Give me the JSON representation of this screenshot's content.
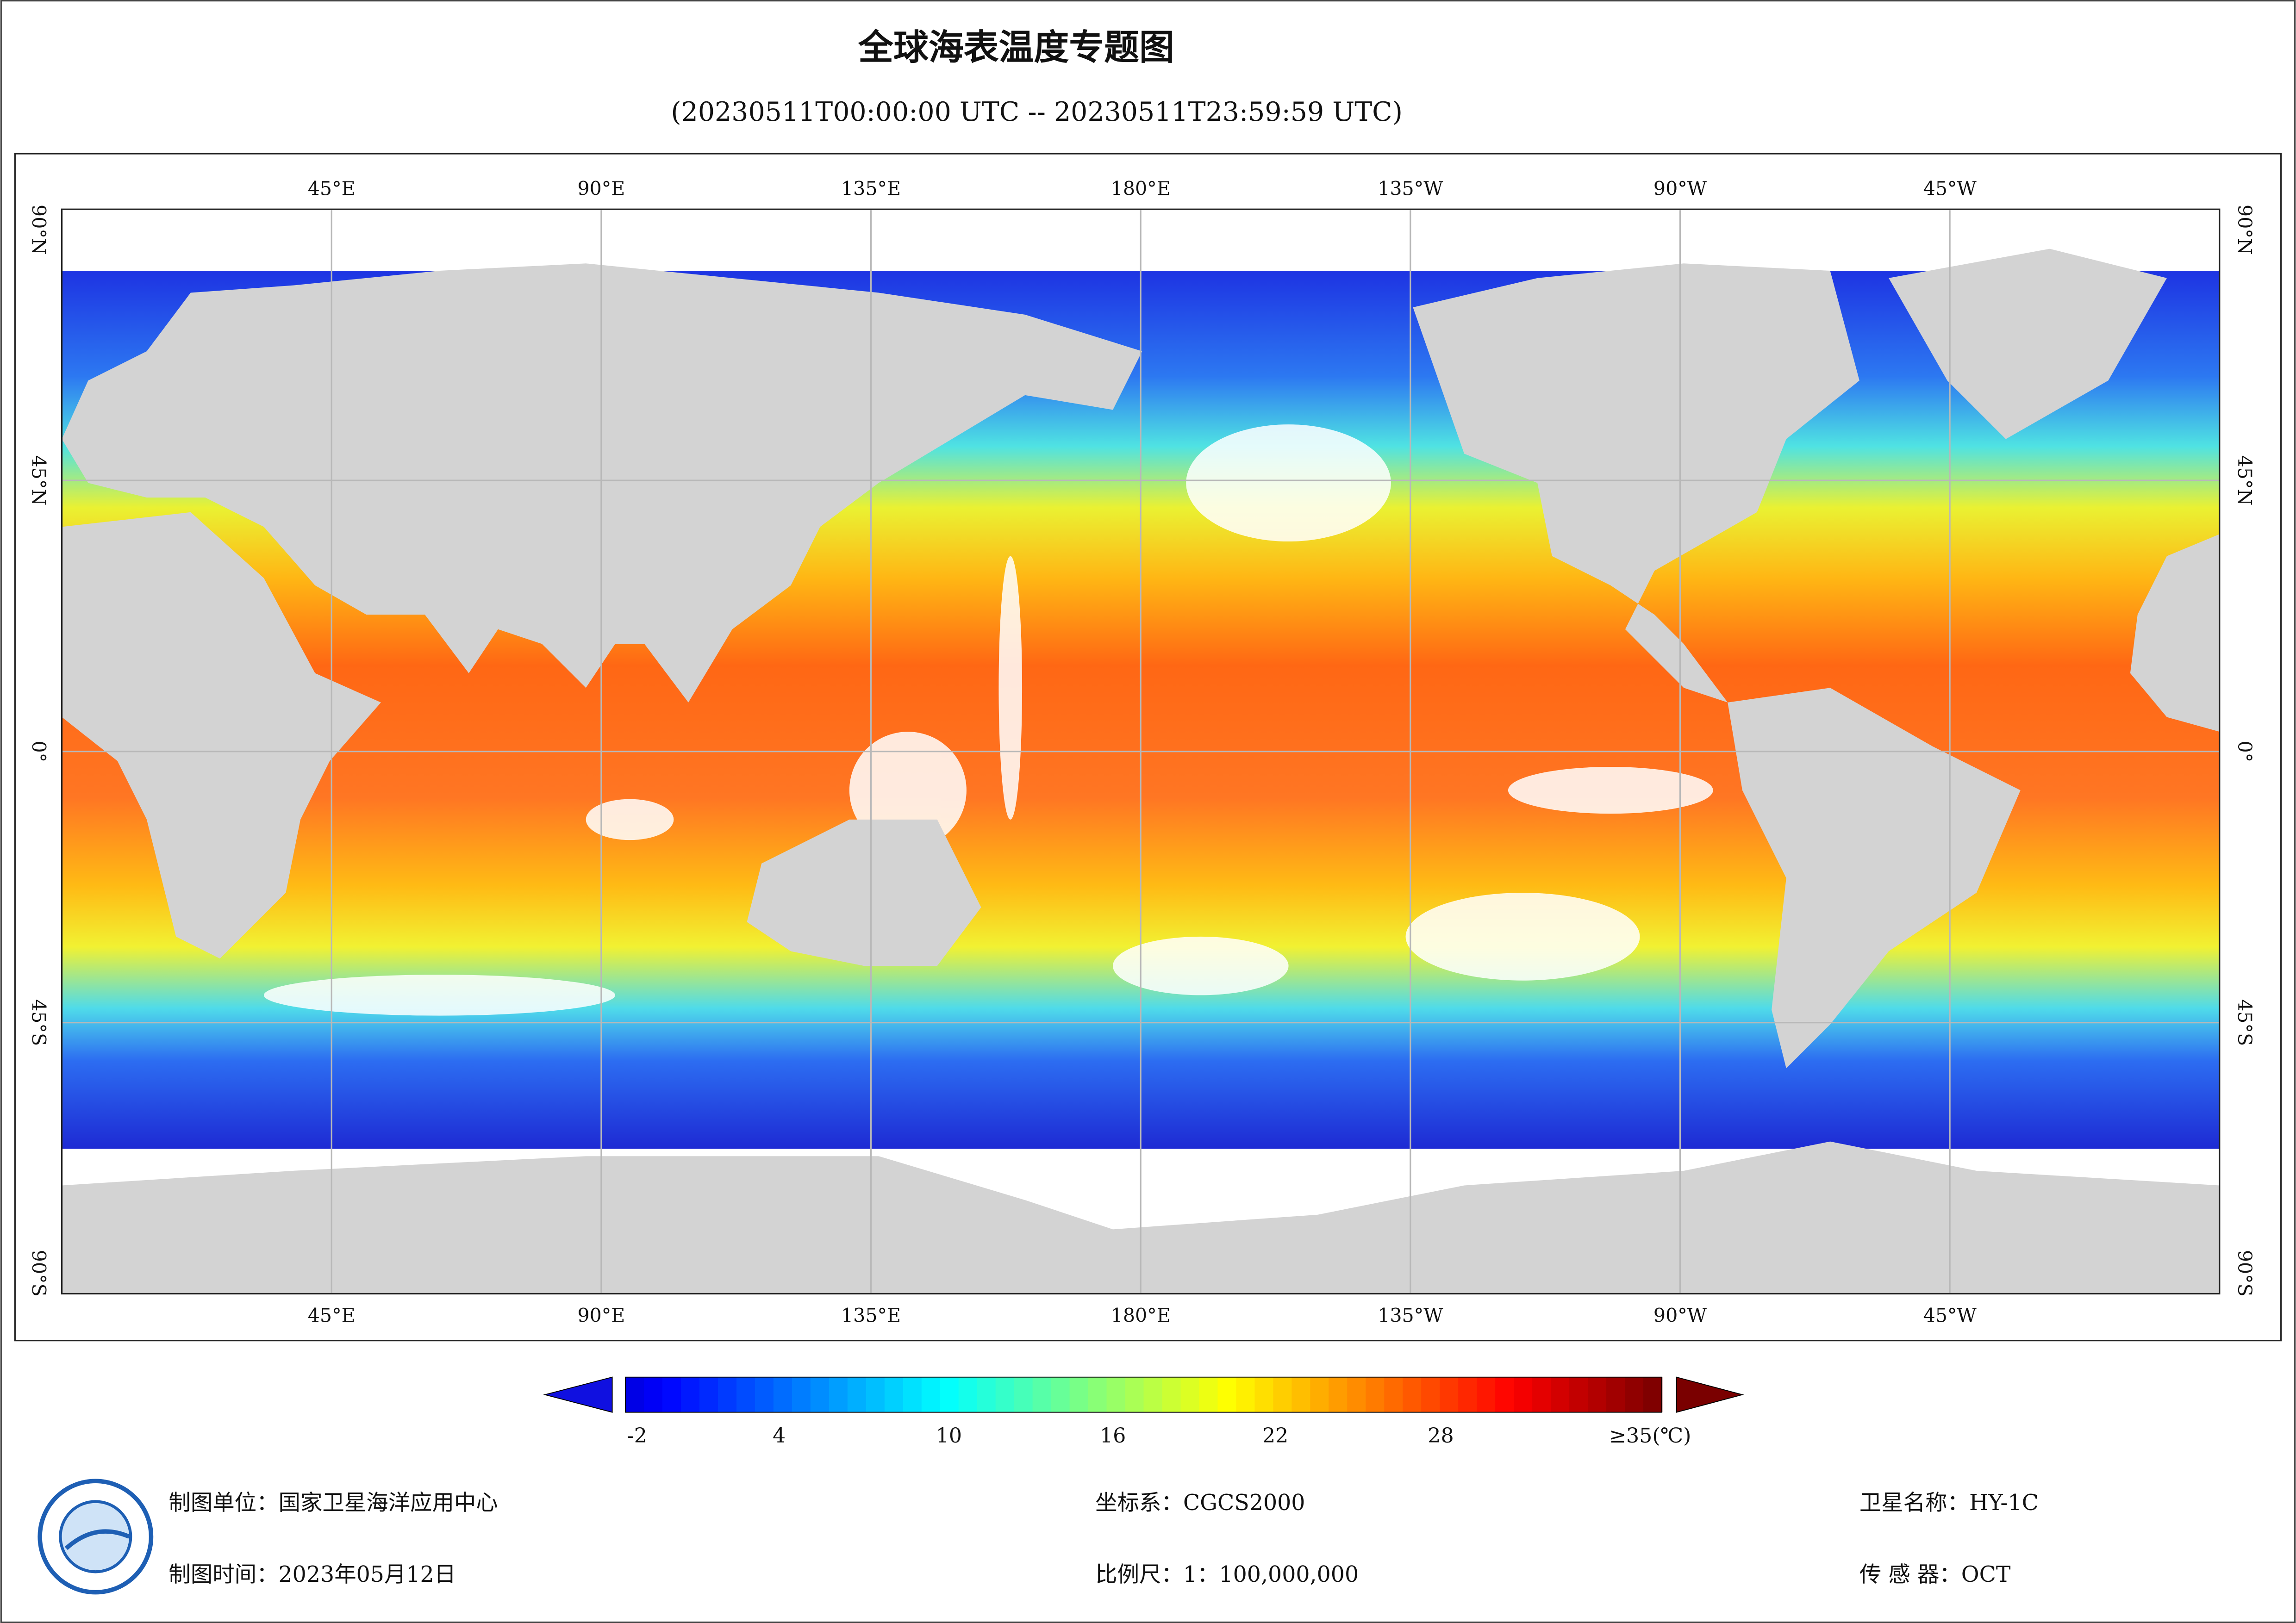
{
  "header": {
    "title": "全球海表温度专题图",
    "subtitle": "(20230511T00:00:00 UTC -- 20230511T23:59:59 UTC)"
  },
  "map": {
    "lon_labels": [
      "45°E",
      "90°E",
      "135°E",
      "180°E",
      "135°W",
      "90°W",
      "45°W"
    ],
    "lat_labels": [
      "90°N",
      "45°N",
      "0°",
      "45°S",
      "90°S"
    ]
  },
  "colorbar": {
    "tick_labels": [
      "-2",
      "4",
      "10",
      "16",
      "22",
      "28",
      "≥35(℃)"
    ]
  },
  "footer": {
    "unit": "制图单位：国家卫星海洋应用中心",
    "date": "制图时间：2023年05月12日",
    "crs": "坐标系：CGCS2000",
    "scale": "比例尺：1：100,000,000",
    "satellite": "卫星名称：HY-1C",
    "sensor": "传 感 器：OCT"
  }
}
